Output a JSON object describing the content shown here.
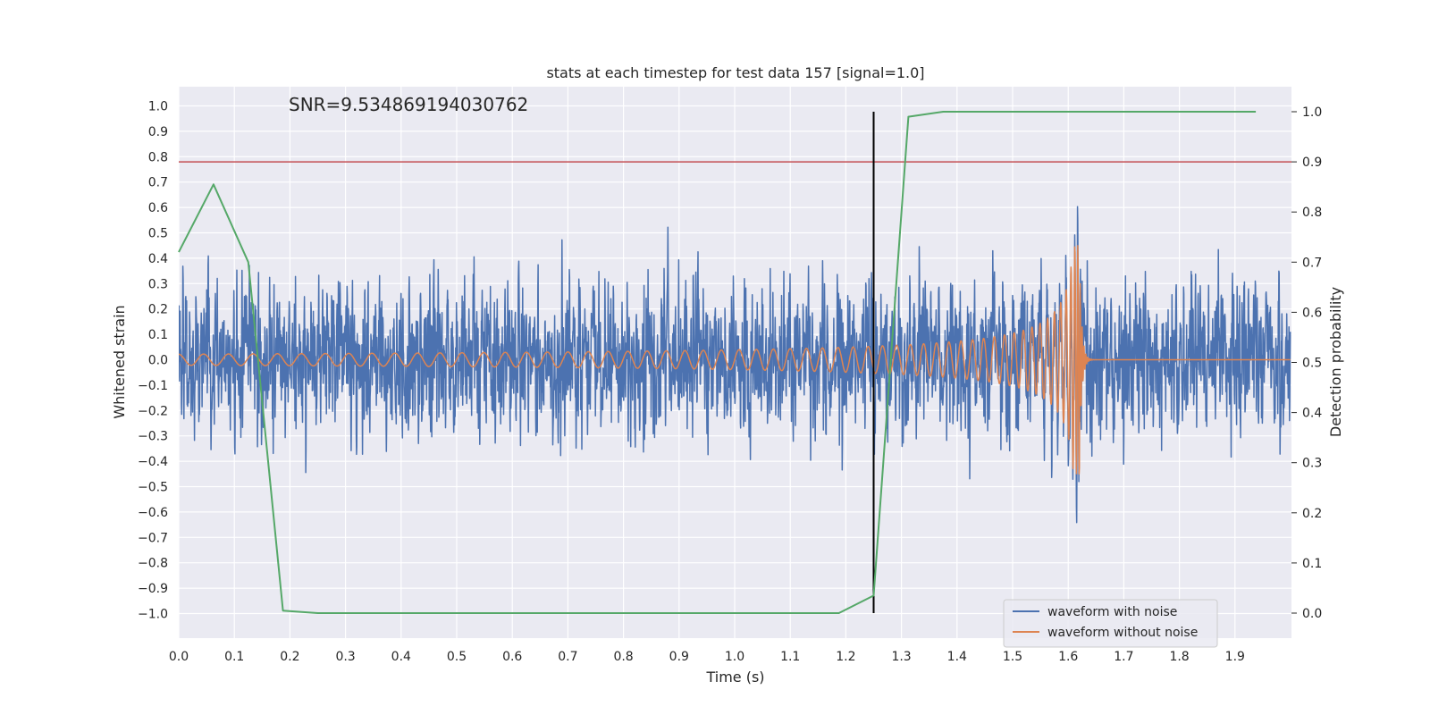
{
  "chart_data": {
    "type": "line",
    "title": "stats at each timestep for test data 157 [signal=1.0]",
    "xlabel": "Time (s)",
    "ylabel": "Whitened strain",
    "y2label": "Detection probability",
    "annotation": "SNR=9.534869194030762",
    "xlim": [
      0.0,
      2.0
    ],
    "ylim": [
      -1.09,
      1.1
    ],
    "y2lim": [
      -0.05,
      1.04
    ],
    "x_ticks": [
      "0.0",
      "0.1",
      "0.2",
      "0.3",
      "0.4",
      "0.5",
      "0.6",
      "0.7",
      "0.8",
      "0.9",
      "1.0",
      "1.1",
      "1.2",
      "1.3",
      "1.4",
      "1.5",
      "1.6",
      "1.7",
      "1.8",
      "1.9"
    ],
    "x_tick_values": [
      0.0,
      0.1,
      0.2,
      0.3,
      0.4,
      0.5,
      0.6,
      0.7,
      0.8,
      0.9,
      1.0,
      1.1,
      1.2,
      1.3,
      1.4,
      1.5,
      1.6,
      1.7,
      1.8,
      1.9
    ],
    "y_ticks": [
      "1.0",
      "0.9",
      "0.8",
      "0.7",
      "0.6",
      "0.5",
      "0.4",
      "0.3",
      "0.2",
      "0.1",
      "0.0",
      "−0.1",
      "−0.2",
      "−0.3",
      "−0.4",
      "−0.5",
      "−0.6",
      "−0.7",
      "−0.8",
      "−0.9",
      "−1.0"
    ],
    "y_tick_values": [
      1.0,
      0.9,
      0.8,
      0.7,
      0.6,
      0.5,
      0.4,
      0.3,
      0.2,
      0.1,
      0.0,
      -0.1,
      -0.2,
      -0.3,
      -0.4,
      -0.5,
      -0.6,
      -0.7,
      -0.8,
      -0.9,
      -1.0
    ],
    "y2_ticks": [
      "1.0",
      "0.9",
      "0.8",
      "0.7",
      "0.6",
      "0.5",
      "0.4",
      "0.3",
      "0.2",
      "0.1",
      "0.0"
    ],
    "y2_tick_values": [
      1.0,
      0.9,
      0.8,
      0.7,
      0.6,
      0.5,
      0.4,
      0.3,
      0.2,
      0.1,
      0.0
    ],
    "threshold": {
      "axis": "y2",
      "value": 0.9,
      "color": "#c44e52"
    },
    "vline": {
      "x": 1.25,
      "color": "#000000"
    },
    "detection_probability": {
      "name": "detection probability",
      "color": "#55a868",
      "x": [
        0.0,
        0.0625,
        0.125,
        0.1875,
        0.25,
        0.3125,
        0.375,
        0.4375,
        0.5,
        0.5625,
        0.625,
        0.6875,
        0.75,
        0.8125,
        0.875,
        0.9375,
        1.0,
        1.0625,
        1.125,
        1.1875,
        1.25,
        1.3125,
        1.375,
        1.4375,
        1.5,
        1.5625,
        1.625,
        1.6875,
        1.75,
        1.8125,
        1.875,
        1.9375
      ],
      "values": [
        0.72,
        0.855,
        0.7,
        0.005,
        0.0,
        0.0,
        0.0,
        0.0,
        0.0,
        0.0,
        0.0,
        0.0,
        0.0,
        0.0,
        0.0,
        0.0,
        0.0,
        0.0,
        0.0,
        0.0,
        0.035,
        0.99,
        1.0,
        1.0,
        1.0,
        1.0,
        1.0,
        1.0,
        1.0,
        1.0,
        1.0,
        1.0
      ]
    },
    "series": [
      {
        "name": "waveform with noise",
        "color": "#4c72b0",
        "generator": "pseudo-random noise (seed 157), sigma 0.2, 4096 samples over 0–2 s",
        "seed": 157,
        "sigma": 0.2,
        "n_samples": 4096
      },
      {
        "name": "waveform without noise",
        "color": "#dd8452",
        "generator": "chirp: amplitude grows to ~0.45, frequency rises 22→300 Hz, merger at 1.62 s",
        "t_merge": 1.62,
        "amp_start": 0.022,
        "amp_end": 0.45,
        "f_start": 22,
        "f_end": 300
      }
    ],
    "legend": {
      "location": "lower right",
      "entries": [
        {
          "label": "waveform with noise",
          "color": "#4c72b0"
        },
        {
          "label": "waveform without noise",
          "color": "#dd8452"
        }
      ]
    },
    "style": {
      "background": "#eaeaf2",
      "grid": true,
      "grid_color": "#ffffff"
    }
  }
}
